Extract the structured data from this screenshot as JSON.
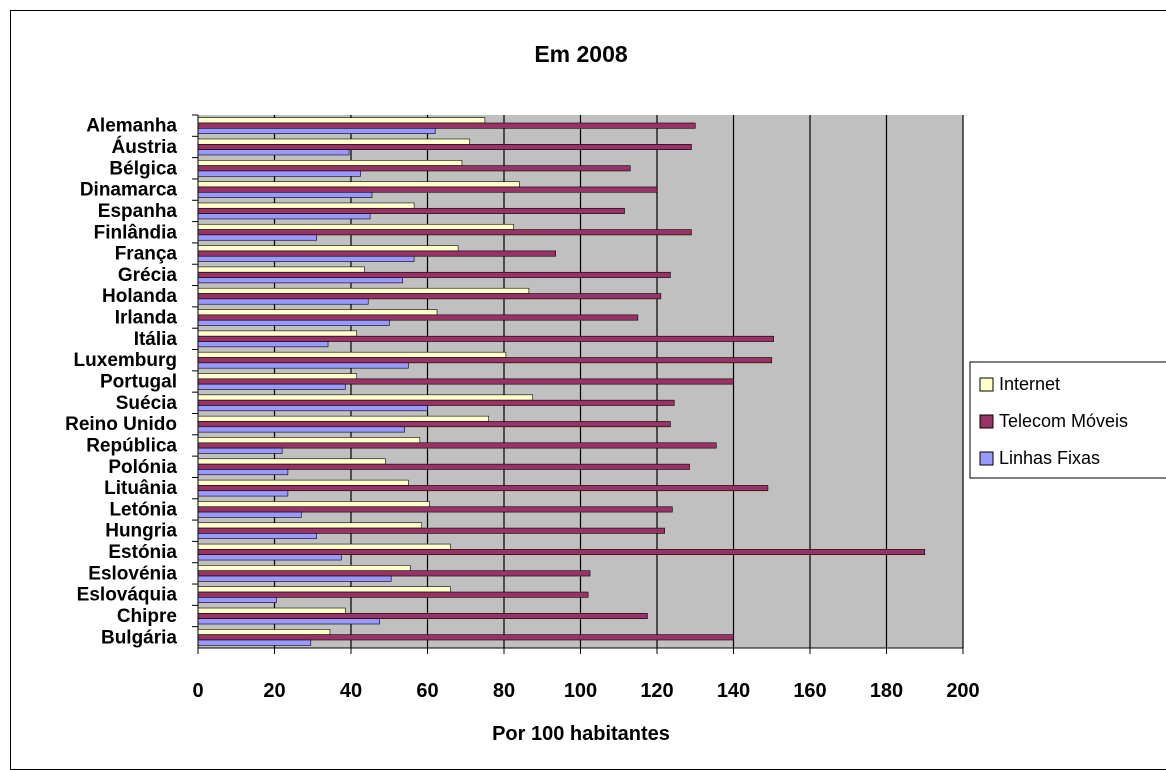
{
  "chart_data": {
    "type": "bar",
    "orientation": "horizontal",
    "title": "Em 2008",
    "xlabel": "Por 100 habitantes",
    "ylabel": "",
    "xlim": [
      0,
      200
    ],
    "x_ticks": [
      0,
      20,
      40,
      60,
      80,
      100,
      120,
      140,
      160,
      180,
      200
    ],
    "grid": true,
    "plot_background": "#c0c0c0",
    "legend_position": "right",
    "categories": [
      "Alemanha",
      "Áustria",
      "Bélgica",
      "Dinamarca",
      "Espanha",
      "Finlândia",
      "França",
      "Grécia",
      "Holanda",
      "Irlanda",
      "Itália",
      "Luxemburg",
      "Portugal",
      "Suécia",
      "Reino Unido",
      "República",
      "Polónia",
      "Lituânia",
      "Letónia",
      "Hungria",
      "Estónia",
      "Eslovénia",
      "Eslováquia",
      "Chipre",
      "Bulgária"
    ],
    "series": [
      {
        "name": "Internet",
        "color": "#ffffcc",
        "values": [
          75,
          71,
          69,
          84,
          56.5,
          82.5,
          68,
          43.5,
          86.5,
          62.5,
          41.5,
          80.5,
          41.5,
          87.5,
          76,
          58,
          49,
          55,
          60.5,
          58.5,
          66,
          55.5,
          66,
          38.5,
          34.5
        ]
      },
      {
        "name": "Telecom Móveis",
        "color": "#993366",
        "values": [
          130,
          129,
          113,
          120,
          111.5,
          129,
          93.5,
          123.5,
          121,
          115,
          150.5,
          150,
          140,
          124.5,
          123.5,
          135.5,
          128.5,
          149,
          124,
          122,
          190,
          102.5,
          102,
          117.5,
          140
        ]
      },
      {
        "name": "Linhas Fixas",
        "color": "#9999ff",
        "values": [
          62,
          39.5,
          42.5,
          45.5,
          45,
          31,
          56.5,
          53.5,
          44.5,
          50,
          34,
          55,
          38.5,
          60,
          54,
          22,
          23.5,
          23.5,
          27,
          31,
          37.5,
          50.5,
          20.5,
          47.5,
          29.5
        ]
      }
    ]
  }
}
